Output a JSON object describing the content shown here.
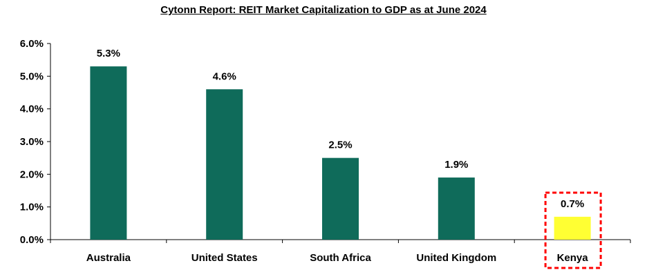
{
  "chart_data": {
    "type": "bar",
    "title": "Cytonn Report: REIT Market Capitalization to GDP as at June 2024",
    "categories": [
      "Australia",
      "United States",
      "South Africa",
      "United Kingdom",
      "Kenya"
    ],
    "values": [
      5.3,
      4.6,
      2.5,
      1.9,
      0.7
    ],
    "data_labels": [
      "5.3%",
      "4.6%",
      "2.5%",
      "1.9%",
      "0.7%"
    ],
    "y_ticks": [
      "0.0%",
      "1.0%",
      "2.0%",
      "3.0%",
      "4.0%",
      "5.0%",
      "6.0%"
    ],
    "ylim": [
      0,
      6
    ],
    "xlabel": "",
    "ylabel": "",
    "grid": false,
    "highlight_category": "Kenya",
    "colors": {
      "bar": "#0f6b5a",
      "highlight_bar": "#ffff33",
      "highlight_box": "#ff0000"
    }
  }
}
